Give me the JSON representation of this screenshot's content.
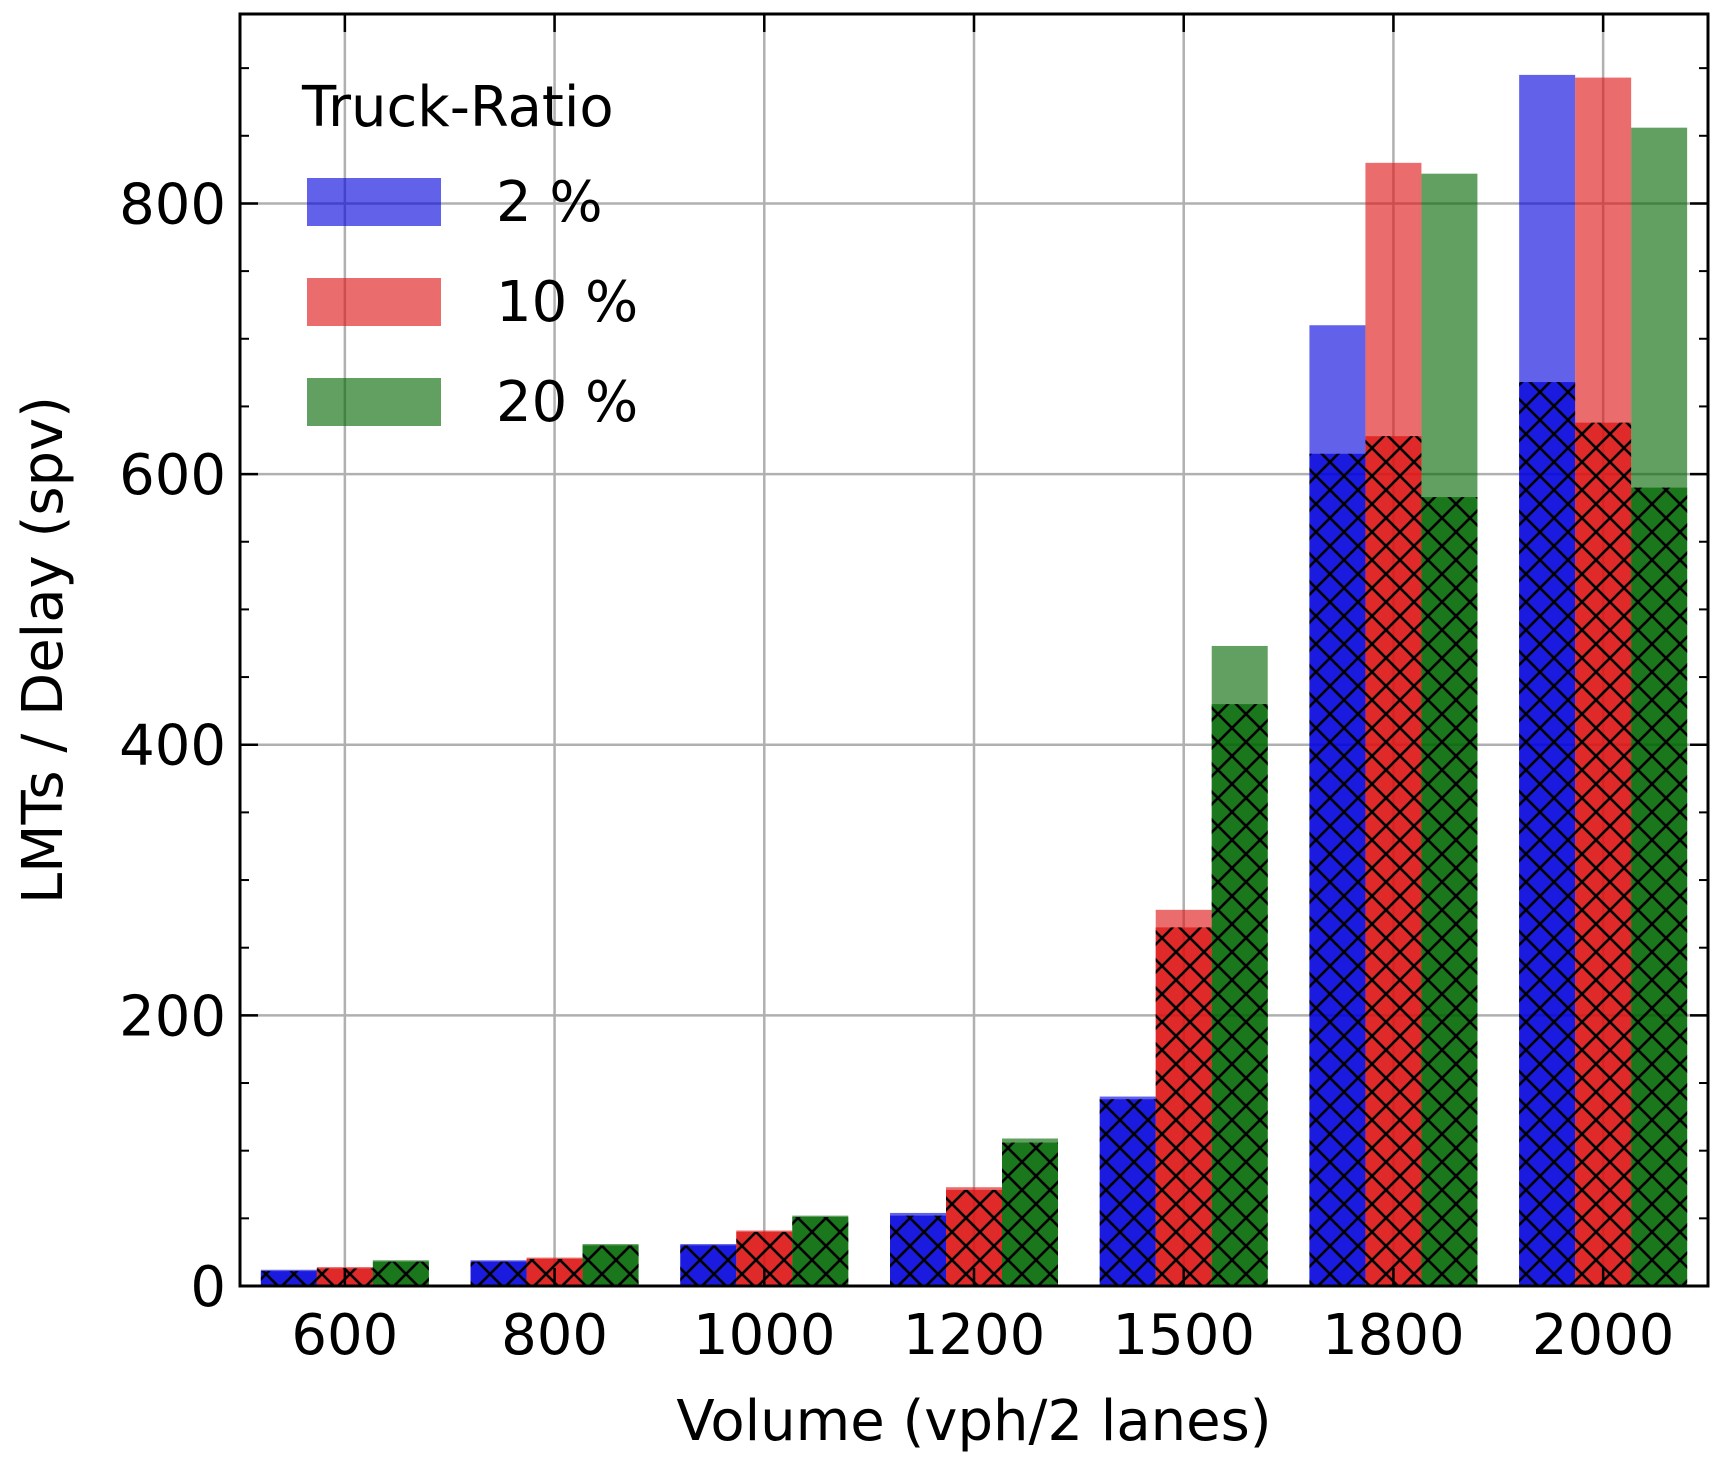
{
  "chart_data": {
    "type": "bar",
    "xlabel": "Volume (vph/2 lanes)",
    "ylabel": "LMTs / Delay (spv)",
    "ylim": [
      0,
      940
    ],
    "yticks": [
      "0",
      "200",
      "400",
      "600",
      "800"
    ],
    "categories": [
      "600",
      "800",
      "1000",
      "1200",
      "1500",
      "1800",
      "2000"
    ],
    "grid": true,
    "legend": {
      "title": "Truck-Ratio",
      "placement": "top-left"
    },
    "series": [
      {
        "name": "2 %",
        "color": "#0000dd",
        "lmts": [
          12,
          19,
          31,
          54,
          140,
          710,
          895
        ],
        "delay": [
          11,
          18,
          30,
          52,
          138,
          615,
          668
        ]
      },
      {
        "name": "10 %",
        "color": "#dd1111",
        "lmts": [
          14,
          21,
          41,
          73,
          278,
          830,
          893
        ],
        "delay": [
          13,
          20,
          40,
          71,
          265,
          628,
          638
        ]
      },
      {
        "name": "20 %",
        "color": "#006600",
        "lmts": [
          19,
          31,
          52,
          109,
          473,
          822,
          856
        ],
        "delay": [
          18,
          30,
          51,
          106,
          430,
          583,
          590
        ]
      }
    ]
  }
}
